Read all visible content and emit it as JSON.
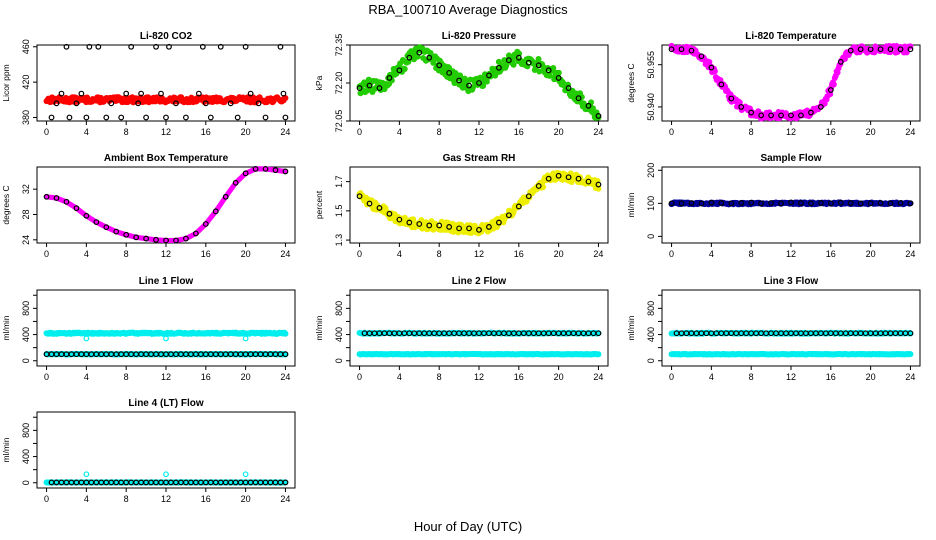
{
  "page": {
    "main_title": "RBA_100710  Average Diagnostics",
    "x_axis_label": "Hour of Day (UTC)"
  },
  "colors": {
    "red": "#ff0000",
    "green": "#22cc00",
    "magenta": "#ff00ff",
    "yellow": "#eeee00",
    "navy": "#000099",
    "cyan": "#00eeee",
    "black": "#000000"
  },
  "chart_data": [
    {
      "id": "co2",
      "type": "scatter",
      "title": "Li-820 CO2",
      "ylabel": "Licor ppm",
      "xlim": [
        0,
        24
      ],
      "xticks": [
        0,
        4,
        8,
        12,
        16,
        20,
        24
      ],
      "ylim": [
        376,
        462
      ],
      "yticks": [
        380,
        420,
        460
      ],
      "series": [
        {
          "name": "raw",
          "color": "red",
          "style": "band",
          "x_range": [
            0,
            24
          ],
          "mean": 400,
          "spread": 3
        },
        {
          "name": "avg",
          "color": "black",
          "style": "open",
          "x": [
            0.5,
            1.0,
            1.5,
            2.0,
            2.3,
            3.0,
            3.5,
            4.0,
            4.3,
            5.2,
            6.0,
            6.5,
            7.5,
            8.0,
            8.5,
            9.2,
            9.5,
            10.0,
            11.0,
            11.5,
            12.0,
            12.3,
            13.0,
            14.0,
            15.3,
            15.7,
            16.0,
            16.5,
            17.5,
            18.5,
            19.2,
            20.0,
            20.5,
            21.3,
            22.0,
            23.5,
            23.8,
            24.0
          ],
          "y": [
            380,
            396,
            407,
            460,
            380,
            396,
            407,
            380,
            460,
            460,
            380,
            396,
            380,
            407,
            460,
            396,
            407,
            380,
            460,
            407,
            380,
            460,
            396,
            380,
            407,
            460,
            396,
            380,
            460,
            396,
            380,
            460,
            407,
            396,
            380,
            460,
            407,
            380
          ]
        }
      ]
    },
    {
      "id": "pressure",
      "type": "scatter",
      "title": "Li-820 Pressure",
      "ylabel": "kPa",
      "xlim": [
        0,
        24
      ],
      "xticks": [
        0,
        4,
        8,
        12,
        16,
        20,
        24
      ],
      "ylim": [
        72.05,
        72.35
      ],
      "yticks": [
        72.05,
        72.2,
        72.35
      ],
      "ytick_labels": [
        "72.05",
        "72.20",
        "72.35"
      ],
      "series": [
        {
          "name": "raw",
          "color": "green",
          "style": "cloud",
          "spread": 0.025
        },
        {
          "name": "avg",
          "color": "black",
          "style": "open",
          "x": [
            0,
            1,
            2,
            3,
            4,
            5,
            6,
            7,
            8,
            9,
            10,
            11,
            12,
            13,
            14,
            15,
            16,
            17,
            18,
            19,
            20,
            21,
            22,
            23,
            24
          ],
          "y": [
            72.18,
            72.19,
            72.18,
            72.22,
            72.25,
            72.3,
            72.32,
            72.3,
            72.27,
            72.24,
            72.21,
            72.19,
            72.2,
            72.23,
            72.26,
            72.29,
            72.3,
            72.28,
            72.27,
            72.25,
            72.22,
            72.18,
            72.14,
            72.11,
            72.07
          ]
        }
      ]
    },
    {
      "id": "temperature",
      "type": "scatter",
      "title": "Li-820 Temperature",
      "ylabel": "degrees C",
      "xlim": [
        0,
        24
      ],
      "xticks": [
        0,
        4,
        8,
        12,
        16,
        20,
        24
      ],
      "ylim": [
        50.935,
        50.962
      ],
      "yticks": [
        50.94,
        50.955
      ],
      "ytick_labels": [
        "50.940",
        "50.955"
      ],
      "series": [
        {
          "name": "raw",
          "color": "magenta",
          "style": "cloud",
          "spread": 0.0012
        },
        {
          "name": "avg",
          "color": "black",
          "style": "open",
          "x": [
            0,
            1,
            2,
            3,
            4,
            5,
            6,
            7,
            8,
            9,
            10,
            11,
            12,
            13,
            14,
            15,
            16,
            17,
            18,
            19,
            20,
            21,
            22,
            23,
            24
          ],
          "y": [
            50.9605,
            50.9605,
            50.96,
            50.958,
            50.954,
            50.948,
            50.943,
            50.94,
            50.938,
            50.937,
            50.937,
            50.937,
            50.937,
            50.937,
            50.938,
            50.94,
            50.946,
            50.956,
            50.96,
            50.9605,
            50.9605,
            50.9605,
            50.9605,
            50.9605,
            50.9605
          ]
        }
      ]
    },
    {
      "id": "ambient",
      "type": "scatter",
      "title": "Ambient Box Temperature",
      "ylabel": "degrees C",
      "xlim": [
        0,
        24
      ],
      "xticks": [
        0,
        4,
        8,
        12,
        16,
        20,
        24
      ],
      "ylim": [
        23.5,
        35.5
      ],
      "yticks": [
        24,
        28,
        32
      ],
      "series": [
        {
          "name": "raw",
          "color": "magenta",
          "style": "line"
        },
        {
          "name": "avg",
          "color": "black",
          "style": "open",
          "x": [
            0,
            1,
            2,
            3,
            4,
            5,
            6,
            7,
            8,
            9,
            10,
            11,
            12,
            13,
            14,
            15,
            16,
            17,
            18,
            19,
            20,
            21,
            22,
            23,
            24
          ],
          "y": [
            30.8,
            30.6,
            30.0,
            29.0,
            27.8,
            26.8,
            26.0,
            25.3,
            24.8,
            24.4,
            24.2,
            24.0,
            23.9,
            23.9,
            24.2,
            25.0,
            26.5,
            28.5,
            30.8,
            33.0,
            34.5,
            35.2,
            35.2,
            35.0,
            34.8
          ]
        }
      ]
    },
    {
      "id": "rh",
      "type": "scatter",
      "title": "Gas Stream RH",
      "ylabel": "percent",
      "xlim": [
        0,
        24
      ],
      "xticks": [
        0,
        4,
        8,
        12,
        16,
        20,
        24
      ],
      "ylim": [
        1.28,
        1.8
      ],
      "yticks": [
        1.3,
        1.5,
        1.7
      ],
      "series": [
        {
          "name": "raw",
          "color": "yellow",
          "style": "cloud",
          "spread": 0.03
        },
        {
          "name": "avg",
          "color": "black",
          "style": "open",
          "x": [
            0,
            1,
            2,
            3,
            4,
            5,
            6,
            7,
            8,
            9,
            10,
            11,
            12,
            13,
            14,
            15,
            16,
            17,
            18,
            19,
            20,
            21,
            22,
            23,
            24
          ],
          "y": [
            1.6,
            1.55,
            1.52,
            1.48,
            1.44,
            1.42,
            1.41,
            1.4,
            1.4,
            1.39,
            1.38,
            1.38,
            1.37,
            1.39,
            1.42,
            1.47,
            1.53,
            1.6,
            1.67,
            1.72,
            1.74,
            1.73,
            1.72,
            1.7,
            1.68
          ]
        }
      ]
    },
    {
      "id": "sample",
      "type": "scatter",
      "title": "Sample Flow",
      "ylabel": "ml/min",
      "xlim": [
        0,
        24
      ],
      "xticks": [
        0,
        4,
        8,
        12,
        16,
        20,
        24
      ],
      "ylim": [
        -20,
        210
      ],
      "yticks": [
        0,
        100,
        200
      ],
      "series": [
        {
          "name": "raw",
          "color": "navy",
          "style": "band",
          "x_range": [
            0,
            24
          ],
          "mean": 100,
          "spread": 3
        },
        {
          "name": "avg",
          "color": "black",
          "style": "open",
          "x": [
            0,
            1,
            2,
            3,
            4,
            5,
            6,
            7,
            8,
            9,
            10,
            11,
            12,
            13,
            14,
            15,
            16,
            17,
            18,
            19,
            20,
            21,
            22,
            23,
            24
          ],
          "y": [
            100,
            100,
            101,
            100,
            102,
            101,
            100,
            101,
            102,
            100,
            101,
            100,
            103,
            101,
            100,
            101,
            100,
            102,
            101,
            100,
            100,
            101,
            100,
            101,
            100
          ]
        }
      ]
    },
    {
      "id": "line1",
      "type": "scatter",
      "title": "Line 1 Flow",
      "ylabel": "ml/min",
      "xlim": [
        0,
        24
      ],
      "xticks": [
        0,
        4,
        8,
        12,
        16,
        20,
        24
      ],
      "ylim": [
        -80,
        1080
      ],
      "yticks": [
        0,
        200,
        400,
        600,
        800,
        1000
      ],
      "ytick_labels": [
        "0",
        "",
        "400",
        "",
        "800",
        ""
      ],
      "series": [
        {
          "name": "high",
          "color": "cyan",
          "style": "band",
          "x_range": [
            0,
            24
          ],
          "mean": 420,
          "spread": 10
        },
        {
          "name": "low",
          "color": "cyan",
          "style": "band",
          "x_range": [
            0,
            24
          ],
          "mean": 100,
          "spread": 4
        },
        {
          "name": "avg",
          "color": "black",
          "style": "open",
          "x_range": [
            0,
            24
          ],
          "n": 49,
          "mean": 100
        },
        {
          "name": "spikes",
          "color": "cyan",
          "style": "open",
          "x": [
            4,
            12,
            20
          ],
          "y": [
            340,
            340,
            340
          ]
        }
      ]
    },
    {
      "id": "line2",
      "type": "scatter",
      "title": "Line 2 Flow",
      "ylabel": "ml/min",
      "xlim": [
        0,
        24
      ],
      "xticks": [
        0,
        4,
        8,
        12,
        16,
        20,
        24
      ],
      "ylim": [
        -80,
        1080
      ],
      "yticks": [
        0,
        200,
        400,
        600,
        800,
        1000
      ],
      "ytick_labels": [
        "0",
        "",
        "400",
        "",
        "800",
        ""
      ],
      "series": [
        {
          "name": "high",
          "color": "cyan",
          "style": "band",
          "x_range": [
            0,
            24
          ],
          "mean": 420,
          "spread": 8
        },
        {
          "name": "low",
          "color": "cyan",
          "style": "band",
          "x_range": [
            0,
            24
          ],
          "mean": 100,
          "spread": 4
        },
        {
          "name": "avg",
          "color": "black",
          "style": "open",
          "x_range": [
            0.5,
            24
          ],
          "n": 48,
          "mean": 420
        }
      ]
    },
    {
      "id": "line3",
      "type": "scatter",
      "title": "Line 3 Flow",
      "ylabel": "ml/min",
      "xlim": [
        0,
        24
      ],
      "xticks": [
        0,
        4,
        8,
        12,
        16,
        20,
        24
      ],
      "ylim": [
        -80,
        1080
      ],
      "yticks": [
        0,
        200,
        400,
        600,
        800,
        1000
      ],
      "ytick_labels": [
        "0",
        "",
        "400",
        "",
        "800",
        ""
      ],
      "series": [
        {
          "name": "high",
          "color": "cyan",
          "style": "band",
          "x_range": [
            0,
            24
          ],
          "mean": 420,
          "spread": 8
        },
        {
          "name": "low",
          "color": "cyan",
          "style": "band",
          "x_range": [
            0,
            24
          ],
          "mean": 100,
          "spread": 4
        },
        {
          "name": "avg",
          "color": "black",
          "style": "open",
          "x_range": [
            0.5,
            24
          ],
          "n": 48,
          "mean": 420
        }
      ]
    },
    {
      "id": "line4",
      "type": "scatter",
      "title": "Line 4 (LT) Flow",
      "ylabel": "ml/min",
      "xlim": [
        0,
        24
      ],
      "xticks": [
        0,
        4,
        8,
        12,
        16,
        20,
        24
      ],
      "ylim": [
        -80,
        1080
      ],
      "yticks": [
        0,
        200,
        400,
        600,
        800,
        1000
      ],
      "ytick_labels": [
        "0",
        "",
        "400",
        "",
        "800",
        ""
      ],
      "series": [
        {
          "name": "low",
          "color": "cyan",
          "style": "band",
          "x_range": [
            0,
            24
          ],
          "mean": 5,
          "spread": 3
        },
        {
          "name": "avg",
          "color": "black",
          "style": "open",
          "x_range": [
            0.5,
            24
          ],
          "n": 48,
          "mean": 5
        },
        {
          "name": "spikes",
          "color": "cyan",
          "style": "open",
          "x": [
            4,
            12,
            20
          ],
          "y": [
            130,
            130,
            130
          ]
        }
      ]
    }
  ]
}
